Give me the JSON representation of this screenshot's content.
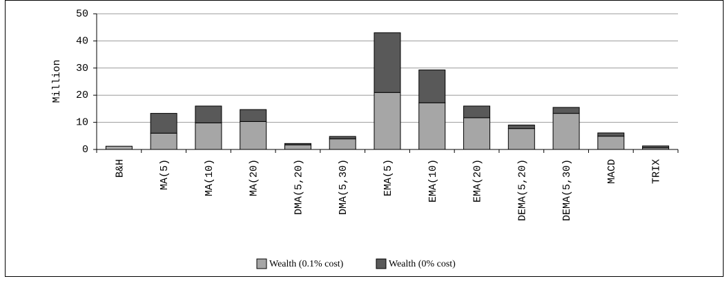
{
  "chart_data": {
    "type": "bar",
    "stacked": true,
    "y_label": "Million",
    "categories": [
      "B&H",
      "MA(5)",
      "MA(10)",
      "MA(20)",
      "DMA(5,20)",
      "DMA(5,30)",
      "EMA(5)",
      "EMA(10)",
      "EMA(20)",
      "DEMA(5,20)",
      "DEMA(5,30)",
      "MACD",
      "TRIX"
    ],
    "series": [
      {
        "name": "Wealth (0.1% cost)",
        "color": "#a6a6a6",
        "values": [
          1.2,
          6,
          9.8,
          10.3,
          1.7,
          3.9,
          21,
          17.2,
          11.7,
          7.7,
          13.3,
          4.9,
          0.6
        ]
      },
      {
        "name": "Wealth (0% cost)",
        "color": "#595959",
        "values": [
          0,
          7.3,
          6.2,
          4.4,
          0.5,
          0.9,
          22,
          12.1,
          4.3,
          1.3,
          2.2,
          1.2,
          0.7
        ]
      }
    ],
    "ylim": [
      0,
      50
    ],
    "yticks": [
      0,
      10,
      20,
      30,
      40,
      50
    ],
    "grid": true,
    "legend": "bottom"
  }
}
